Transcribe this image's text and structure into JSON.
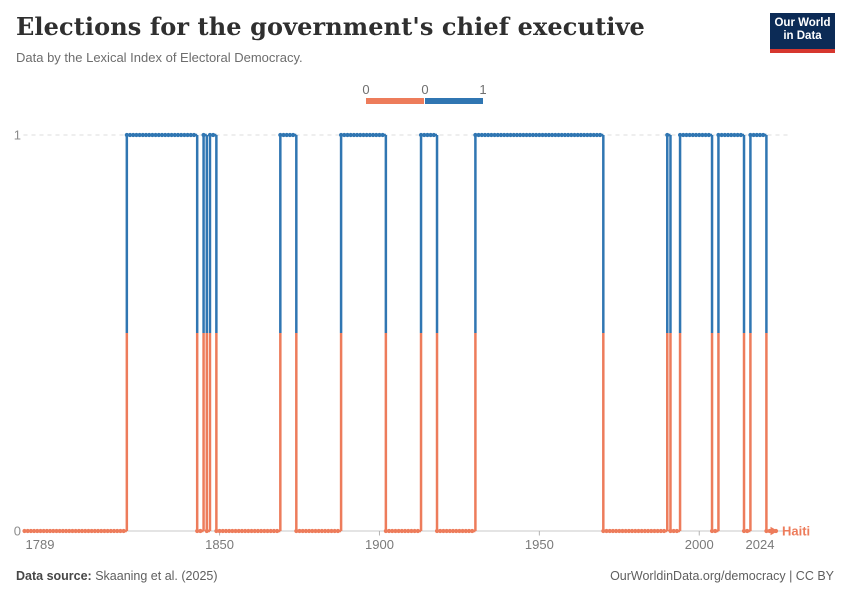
{
  "header": {
    "title": "Elections for the government's chief executive",
    "subtitle": "Data by the Lexical Index of Electoral Democracy.",
    "logo": {
      "line1": "Our World",
      "line2": "in Data"
    }
  },
  "legend": {
    "labels": [
      "0",
      "0",
      "1"
    ],
    "bins": [
      {
        "value": 0,
        "color": "#ED7C5B"
      },
      {
        "value": 1,
        "color": "#3076B2"
      }
    ]
  },
  "chart_data": {
    "type": "line",
    "style": "binary-step-timeline",
    "title": "Elections for the government's chief executive",
    "subtitle": "Data by the Lexical Index of Electoral Democracy.",
    "entity": "Haiti",
    "xlabel": "",
    "ylabel": "",
    "x": {
      "min": 1789,
      "max": 2024,
      "ticks": [
        1789,
        1850,
        1900,
        1950,
        2000,
        2024
      ]
    },
    "y": {
      "min": 0,
      "max": 1,
      "ticks": [
        0,
        1
      ]
    },
    "grid": "dashed line at y=1 only",
    "legend_position": "top-center",
    "colors": {
      "value0": "#ED7C5B",
      "value1": "#3076B2"
    },
    "series": [
      {
        "name": "Haiti",
        "end_year": 2024,
        "steps": [
          [
            1789,
            0
          ],
          [
            1821,
            1
          ],
          [
            1843,
            0
          ],
          [
            1845,
            1
          ],
          [
            1846,
            0
          ],
          [
            1847,
            1
          ],
          [
            1849,
            0
          ],
          [
            1869,
            1
          ],
          [
            1874,
            0
          ],
          [
            1888,
            1
          ],
          [
            1902,
            0
          ],
          [
            1913,
            1
          ],
          [
            1918,
            0
          ],
          [
            1930,
            1
          ],
          [
            1970,
            0
          ],
          [
            1990,
            1
          ],
          [
            1991,
            0
          ],
          [
            1994,
            1
          ],
          [
            2004,
            0
          ],
          [
            2006,
            1
          ],
          [
            2014,
            0
          ],
          [
            2016,
            1
          ],
          [
            2021,
            0
          ]
        ]
      }
    ]
  },
  "footer": {
    "source_label": "Data source:",
    "source_text": " Skaaning et al. (2025)",
    "right_text": "OurWorldinData.org/democracy | CC BY"
  }
}
